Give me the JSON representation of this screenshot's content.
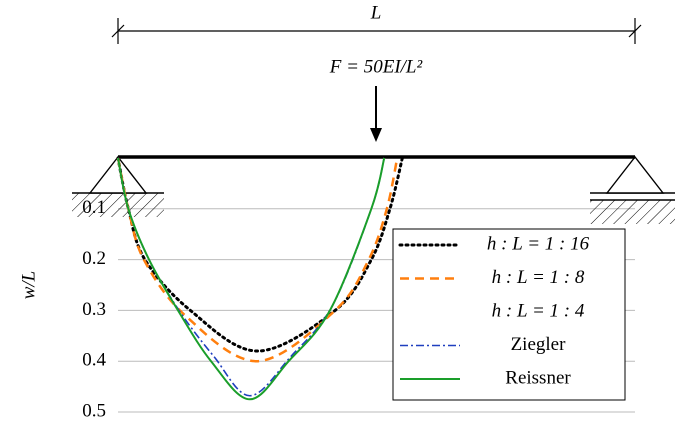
{
  "chart_data": {
    "type": "line",
    "annotations": {
      "span": "L",
      "force": "F = 50EI/L²"
    },
    "y_label": "w/L",
    "ylim": [
      0,
      0.5
    ],
    "yticks": [
      0.1,
      0.2,
      0.3,
      0.4,
      0.5
    ],
    "y_inverted": true,
    "xlim": [
      0,
      1
    ],
    "grid": true,
    "legend": "lower right",
    "series": [
      {
        "name": "h : L = 1 : 16",
        "color": "#000000",
        "dash": "dotted",
        "x": [
          0,
          0.02,
          0.052,
          0.14,
          0.27,
          0.42,
          0.49,
          0.526,
          0.55
        ],
        "values": [
          0,
          0.1,
          0.2,
          0.3,
          0.38,
          0.3,
          0.2,
          0.1,
          0
        ]
      },
      {
        "name": "h : L = 1 : 8",
        "color": "#ff7f0e",
        "dash": "dashed",
        "x": [
          0,
          0.02,
          0.05,
          0.13,
          0.27,
          0.42,
          0.485,
          0.52,
          0.54
        ],
        "values": [
          0,
          0.1,
          0.2,
          0.31,
          0.4,
          0.3,
          0.2,
          0.1,
          0
        ]
      },
      {
        "name": "h : L = 1 : 4",
        "color": "#ffffff",
        "dash": "solid",
        "x": [
          0,
          0.02,
          0.06,
          0.116,
          0.18,
          0.255,
          0.33,
          0.41,
          0.49,
          0.515
        ],
        "values": [
          0,
          0.1,
          0.2,
          0.3,
          0.4,
          0.475,
          0.4,
          0.3,
          0.1,
          0
        ]
      },
      {
        "name": "Ziegler",
        "color": "#1f3fbf",
        "dash": "dashdot",
        "x": [
          0,
          0.02,
          0.06,
          0.118,
          0.185,
          0.255,
          0.335,
          0.415,
          0.49,
          0.515
        ],
        "values": [
          0,
          0.1,
          0.2,
          0.3,
          0.39,
          0.468,
          0.39,
          0.29,
          0.1,
          0
        ]
      },
      {
        "name": "Reissner",
        "color": "#1a9e2a",
        "dash": "solid",
        "x": [
          0,
          0.02,
          0.06,
          0.116,
          0.18,
          0.255,
          0.33,
          0.41,
          0.49,
          0.515
        ],
        "values": [
          0,
          0.1,
          0.2,
          0.3,
          0.4,
          0.475,
          0.4,
          0.3,
          0.1,
          0
        ]
      }
    ]
  }
}
